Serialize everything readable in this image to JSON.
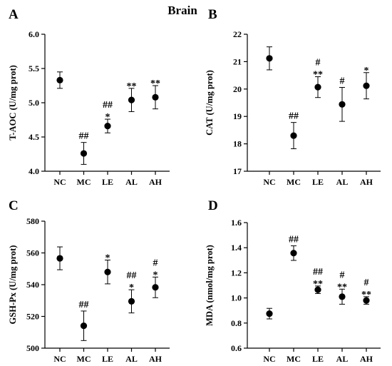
{
  "title": "Brain",
  "chart_data": [
    {
      "letter": "A",
      "type": "scatter",
      "categories": [
        "NC",
        "MC",
        "LE",
        "AL",
        "AH"
      ],
      "ylabel": "T-AOC (U/mg prot)",
      "ylim": [
        4.0,
        6.0
      ],
      "yticks": [
        "4.0",
        "4.5",
        "5.0",
        "5.5",
        "6.0"
      ],
      "series": [
        {
          "values": [
            5.33,
            4.26,
            4.66,
            5.04,
            5.08
          ],
          "errors": [
            0.12,
            0.16,
            0.1,
            0.17,
            0.17
          ]
        }
      ],
      "annotations": [
        {
          "category": "NC",
          "lines": []
        },
        {
          "category": "MC",
          "lines": [
            "##"
          ]
        },
        {
          "category": "LE",
          "lines": [
            "##",
            "*"
          ]
        },
        {
          "category": "AL",
          "lines": [
            "**"
          ]
        },
        {
          "category": "AH",
          "lines": [
            "**"
          ]
        }
      ]
    },
    {
      "letter": "B",
      "type": "scatter",
      "categories": [
        "NC",
        "MC",
        "LE",
        "AL",
        "AH"
      ],
      "ylabel": "CAT (U/mg prot)",
      "ylim": [
        17,
        22
      ],
      "yticks": [
        "17",
        "18",
        "19",
        "20",
        "21",
        "22"
      ],
      "series": [
        {
          "values": [
            21.12,
            18.3,
            20.07,
            19.44,
            20.12
          ],
          "errors": [
            0.42,
            0.48,
            0.38,
            0.62,
            0.48
          ]
        }
      ],
      "annotations": [
        {
          "category": "NC",
          "lines": []
        },
        {
          "category": "MC",
          "lines": [
            "##"
          ]
        },
        {
          "category": "LE",
          "lines": [
            "#",
            "**"
          ]
        },
        {
          "category": "AL",
          "lines": [
            "#"
          ]
        },
        {
          "category": "AH",
          "lines": [
            "*"
          ]
        }
      ]
    },
    {
      "letter": "C",
      "type": "scatter",
      "categories": [
        "NC",
        "MC",
        "LE",
        "AL",
        "AH"
      ],
      "ylabel": "GSH-Px (U/mg prot)",
      "ylim": [
        500,
        580
      ],
      "yticks": [
        "500",
        "520",
        "540",
        "560",
        "580"
      ],
      "series": [
        {
          "values": [
            556.6,
            514.1,
            548.0,
            529.5,
            538.3
          ],
          "errors": [
            7.2,
            9.3,
            7.5,
            7.3,
            6.5
          ]
        }
      ],
      "annotations": [
        {
          "category": "NC",
          "lines": []
        },
        {
          "category": "MC",
          "lines": [
            "##"
          ]
        },
        {
          "category": "LE",
          "lines": [
            "*"
          ]
        },
        {
          "category": "AL",
          "lines": [
            "##",
            "*"
          ]
        },
        {
          "category": "AH",
          "lines": [
            "#",
            "*"
          ]
        }
      ]
    },
    {
      "letter": "D",
      "type": "scatter",
      "categories": [
        "NC",
        "MC",
        "LE",
        "AL",
        "AH"
      ],
      "ylabel": "MDA (nmol/mg prot)",
      "ylim": [
        0.6,
        1.6
      ],
      "yticks": [
        "0.6",
        "0.8",
        "1.0",
        "1.2",
        "1.4",
        "1.6"
      ],
      "series": [
        {
          "values": [
            0.875,
            1.357,
            1.065,
            1.01,
            0.98
          ],
          "errors": [
            0.042,
            0.058,
            0.03,
            0.06,
            0.03
          ]
        }
      ],
      "annotations": [
        {
          "category": "NC",
          "lines": []
        },
        {
          "category": "MC",
          "lines": [
            "##"
          ]
        },
        {
          "category": "LE",
          "lines": [
            "##",
            "**"
          ]
        },
        {
          "category": "AL",
          "lines": [
            "#",
            "**"
          ]
        },
        {
          "category": "AH",
          "lines": [
            "#",
            "**"
          ]
        }
      ]
    }
  ]
}
